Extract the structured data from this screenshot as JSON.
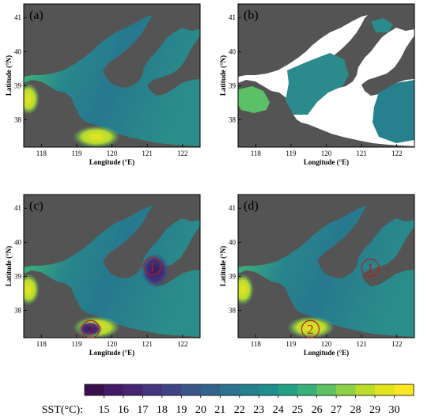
{
  "panels": [
    {
      "label": "(a)",
      "mode": "full",
      "circles": []
    },
    {
      "label": "(b)",
      "mode": "gaps",
      "circles": []
    },
    {
      "label": "(c)",
      "mode": "cold",
      "circles": [
        {
          "label": "1",
          "lon": 121.15,
          "lat": 39.3
        },
        {
          "label": "2",
          "lon": 119.4,
          "lat": 37.45
        }
      ]
    },
    {
      "label": "(d)",
      "mode": "full",
      "circles": [
        {
          "label": "1",
          "lon": 121.25,
          "lat": 39.25
        },
        {
          "label": "2",
          "lon": 119.55,
          "lat": 37.45
        }
      ]
    }
  ],
  "axes": {
    "xlabel": "Longitude (°E)",
    "ylabel": "Latitude (°N)",
    "xticks": [
      "118",
      "119",
      "120",
      "121",
      "122"
    ],
    "yticks": [
      "38",
      "39",
      "40",
      "41"
    ],
    "lon_range": [
      117.5,
      122.5
    ],
    "lat_range": [
      37.2,
      41.4
    ]
  },
  "colorbar": {
    "label": "SST(°C):",
    "ticks": [
      "15",
      "16",
      "17",
      "18",
      "19",
      "20",
      "21",
      "22",
      "23",
      "24",
      "25",
      "26",
      "27",
      "28",
      "29",
      "30"
    ],
    "colors": [
      "#3b0f4e",
      "#421a66",
      "#482573",
      "#45347f",
      "#3f4488",
      "#39558c",
      "#30638d",
      "#2a728e",
      "#24808e",
      "#1f8e8c",
      "#21a086",
      "#38b07a",
      "#5ec263",
      "#8dd048",
      "#bcdc2b",
      "#e2e41e",
      "#fde725"
    ]
  },
  "colors": {
    "land": "#545454",
    "nodata": "#ffffff",
    "circle": "#b02020"
  }
}
